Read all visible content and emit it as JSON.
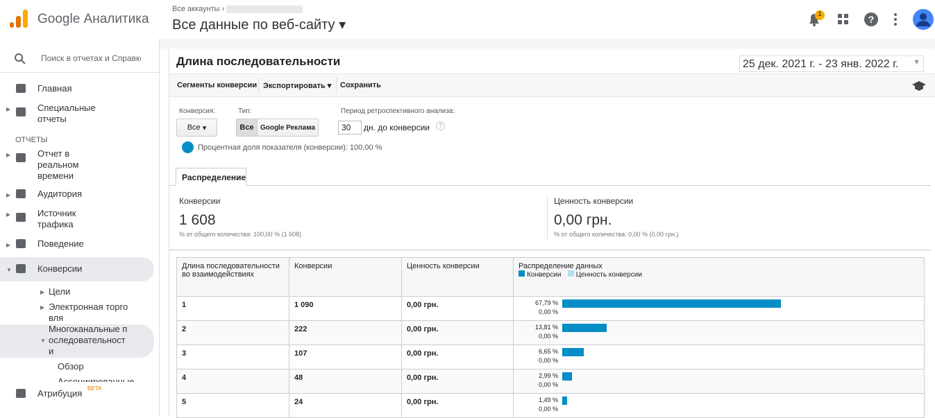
{
  "header": {
    "product": "Google Аналитика",
    "breadcrumb": "Все аккаунты",
    "view": "Все данные по веб-сайту",
    "notifications": "1"
  },
  "sidebar": {
    "search": "Поиск в отчетах и Справке",
    "items": [
      {
        "label": "Главная"
      },
      {
        "label": "Специальные отчеты"
      },
      {
        "section": "ОТЧЕТЫ"
      },
      {
        "label": "Отчет в реальном времени"
      },
      {
        "label": "Аудитория"
      },
      {
        "label": "Источник трафика"
      },
      {
        "label": "Поведение"
      },
      {
        "label": "Конверсии"
      },
      {
        "sub": "Цели"
      },
      {
        "sub": "Электронная торговля"
      },
      {
        "sub": "Многоканальные последовательности"
      },
      {
        "subsub": "Обзор"
      },
      {
        "subsub": "Ассоциированные конверсии"
      },
      {
        "label": "Атрибуция",
        "badge": "BETA"
      }
    ]
  },
  "report": {
    "title": "Длина последовательности",
    "date_range": "25 дек. 2021 г. - 23 янв. 2022 г.",
    "toolbar": [
      "Сегменты конверсии",
      "Экспортировать",
      "Сохранить"
    ],
    "filters": {
      "conversion_label": "Конверсия:",
      "conversion_value": "Все",
      "type_label": "Тип:",
      "type_all": "Все",
      "type_ads": "Google Реклама",
      "lookback_label": "Период ретроспективного анализа:",
      "lookback_days": "30",
      "lookback_suffix": "дн. до конверсии",
      "share": "Процентная доля показателя (конверсии): 100,00 %"
    },
    "tab": "Распределение",
    "summary": [
      {
        "label": "Конверсии",
        "value": "1 608",
        "note": "% от общего количества: 100,00 % (1 608)"
      },
      {
        "label": "Ценность конверсии",
        "value": "0,00 грн.",
        "note": "% от общего количества: 0,00 % (0,00 грн.)"
      }
    ],
    "table": {
      "headers": [
        "Длина последовательности во взаимодействиях",
        "Конверсии",
        "Ценность конверсии",
        "Распределение данных"
      ],
      "legend": [
        "Конверсии",
        "Ценность конверсии"
      ],
      "rows": [
        {
          "length": "1",
          "conversions": "1 090",
          "value": "0,00 грн.",
          "conv_share": 67.79,
          "conv_share_label": "67,79 %",
          "value_share": 0,
          "value_share_label": "0,00 %"
        },
        {
          "length": "2",
          "conversions": "222",
          "value": "0,00 грн.",
          "conv_share": 13.81,
          "conv_share_label": "13,81 %",
          "value_share": 0,
          "value_share_label": "0,00 %"
        },
        {
          "length": "3",
          "conversions": "107",
          "value": "0,00 грн.",
          "conv_share": 6.65,
          "conv_share_label": "6,65 %",
          "value_share": 0,
          "value_share_label": "0,00 %"
        },
        {
          "length": "4",
          "conversions": "48",
          "value": "0,00 грн.",
          "conv_share": 2.99,
          "conv_share_label": "2,99 %",
          "value_share": 0,
          "value_share_label": "0,00 %"
        },
        {
          "length": "5",
          "conversions": "24",
          "value": "0,00 грн.",
          "conv_share": 1.49,
          "conv_share_label": "1,49 %",
          "value_share": 0,
          "value_share_label": "0,00 %"
        }
      ]
    }
  }
}
